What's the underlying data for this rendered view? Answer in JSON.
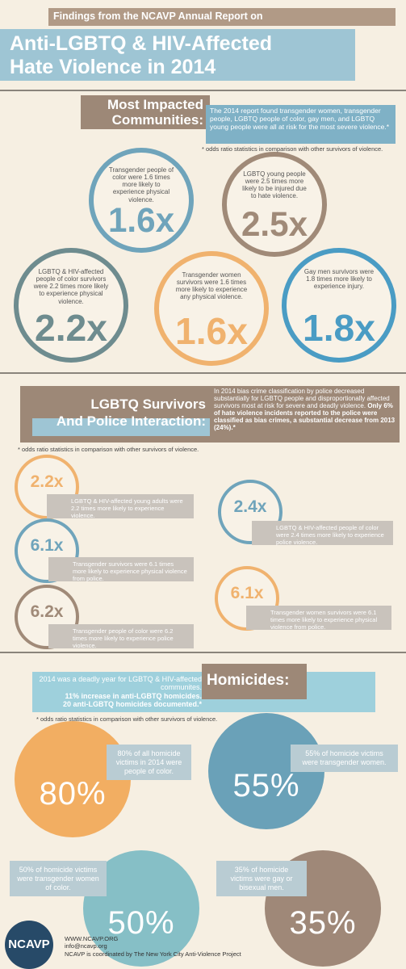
{
  "header": {
    "kicker": "Findings from the NCAVP Annual Report on",
    "title_lines": [
      "Anti-LGBTQ & HIV-Affected",
      "Hate Violence in 2014"
    ]
  },
  "impacted": {
    "heading_lines": [
      "Most Impacted",
      "Communities:"
    ],
    "intro": "The 2014 report found transgender women, transgender people, LGBTQ people of color, gay men, and LGBTQ young people were all at risk for the most severe violence.*",
    "note": "* odds ratio statistics in comparison with other survivors of violence.",
    "stats": [
      {
        "text": "Transgender people of color were 1.6 times more likely to experience physical violence.",
        "value": "1.6x"
      },
      {
        "text": "LGBTQ young people were 2.5 times more likely to be injured due to hate violence.",
        "value": "2.5x"
      },
      {
        "text": "LGBTQ & HIV-affected people of color survivors were 2.2 times more likely to experience physical violence.",
        "value": "2.2x"
      },
      {
        "text": "Transgender women survivors were 1.6 times more likely to experience any physical violence.",
        "value": "1.6x"
      },
      {
        "text": "Gay men survivors were 1.8 times more likely to experience injury.",
        "value": "1.8x"
      }
    ]
  },
  "police": {
    "heading_lines": [
      "LGBTQ Survivors",
      "And Police Interaction:"
    ],
    "intro": "In 2014 bias crime classification by police decreased substantially for LGBTQ people and disproportionally affected survivors most at risk for severe and deadly violence.",
    "intro_bold": "Only 6% of hate violence incidents reported to the police were classified as bias crimes, a substantial decrease from 2013 (24%).*",
    "note": "* odds ratio statistics in comparison with other survivors of violence.",
    "stats": [
      {
        "text": "LGBTQ & HIV-affected young adults were 2.2 times more likely to experience violence.",
        "value": "2.2x"
      },
      {
        "text": "Transgender survivors were 6.1 times more likely to experience physical violence from police.",
        "value": "6.1x"
      },
      {
        "text": "Transgender people of color were 6.2 times more likely to experience police violence.",
        "value": "6.2x"
      },
      {
        "text": "LGBTQ & HIV-affected people of color were 2.4 times more likely to experience police violence.",
        "value": "2.4x"
      },
      {
        "text": "Transgender women survivors were 6.1 times more likely to experience physical violence from police.",
        "value": "6.1x"
      }
    ]
  },
  "homicides": {
    "heading": "Homicides:",
    "intro": "2014 was a deadly year for LGBTQ & HIV-affected communites.",
    "intro_bold": [
      "11% increase in anti-LGBTQ homicides.",
      "20 anti-LGBTQ homicides documented.*"
    ],
    "note": "* odds ratio statistics in comparison with other survivors of violence.",
    "stats": [
      {
        "text": "80% of all homicide victims in 2014 were people of color.",
        "value": "80%"
      },
      {
        "text": "55% of homicide victims were transgender women.",
        "value": "55%"
      },
      {
        "text": "50% of homicide victims were transgender women of color.",
        "value": "50%"
      },
      {
        "text": "35% of homicide victims were gay or bisexual men.",
        "value": "35%"
      }
    ]
  },
  "footer": {
    "logo": "NCAVP",
    "links": [
      "WWW.NCAVP.ORG",
      "info@ncavp.org"
    ],
    "credit": "NCAVP is coordinated by The New York City Anti-Violence Project"
  }
}
